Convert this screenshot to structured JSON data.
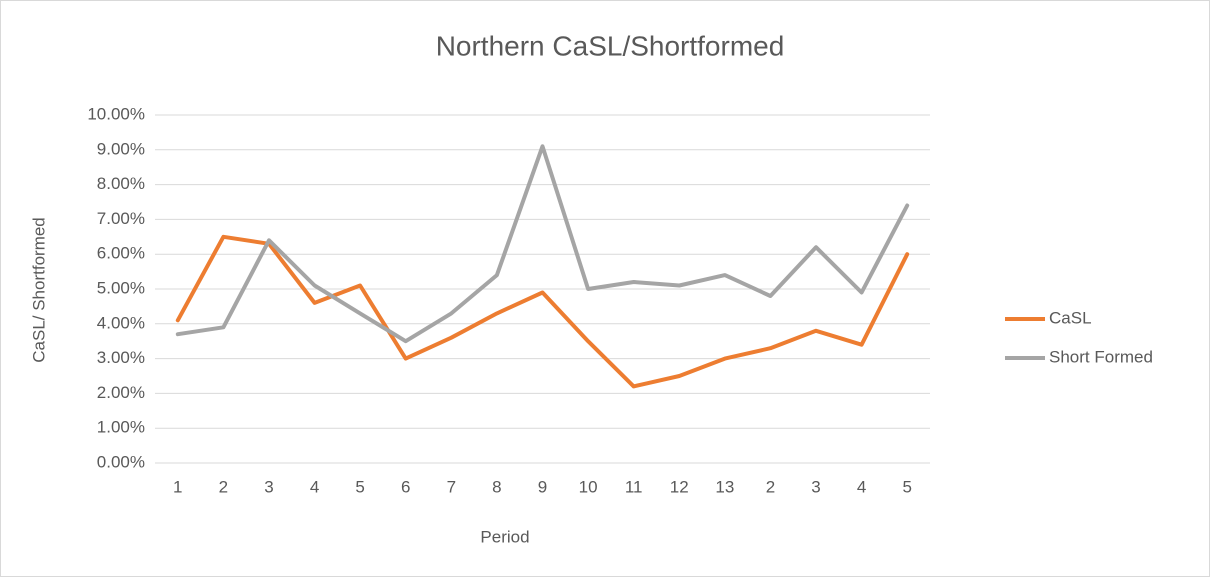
{
  "chart_data": {
    "type": "line",
    "title": "Northern CaSL/Shortformed",
    "x_label": "Period",
    "y_label": "CaSL/ Shortformed",
    "categories": [
      "1",
      "2",
      "3",
      "4",
      "5",
      "6",
      "7",
      "8",
      "9",
      "10",
      "11",
      "12",
      "13",
      "2",
      "3",
      "4",
      "5"
    ],
    "series": [
      {
        "name": "CaSL",
        "color": "#ED7D31",
        "values": [
          4.1,
          6.5,
          6.3,
          4.6,
          5.1,
          3.0,
          3.6,
          4.3,
          4.9,
          3.5,
          2.2,
          2.5,
          3.0,
          3.3,
          3.8,
          3.4,
          6.0
        ]
      },
      {
        "name": "Short Formed",
        "color": "#A5A5A5",
        "values": [
          3.7,
          3.9,
          6.4,
          5.1,
          4.3,
          3.5,
          4.3,
          5.4,
          9.1,
          5.0,
          5.2,
          5.1,
          5.4,
          4.8,
          6.2,
          4.9,
          7.4
        ]
      }
    ],
    "ylim": [
      0,
      10
    ],
    "yticks": [
      {
        "value": 0,
        "label": "0.00%"
      },
      {
        "value": 1,
        "label": "1.00%"
      },
      {
        "value": 2,
        "label": "2.00%"
      },
      {
        "value": 3,
        "label": "3.00%"
      },
      {
        "value": 4,
        "label": "4.00%"
      },
      {
        "value": 5,
        "label": "5.00%"
      },
      {
        "value": 6,
        "label": "6.00%"
      },
      {
        "value": 7,
        "label": "7.00%"
      },
      {
        "value": 8,
        "label": "8.00%"
      },
      {
        "value": 9,
        "label": "9.00%"
      },
      {
        "value": 10,
        "label": "10.00%"
      }
    ],
    "grid": true,
    "legend": "right"
  }
}
